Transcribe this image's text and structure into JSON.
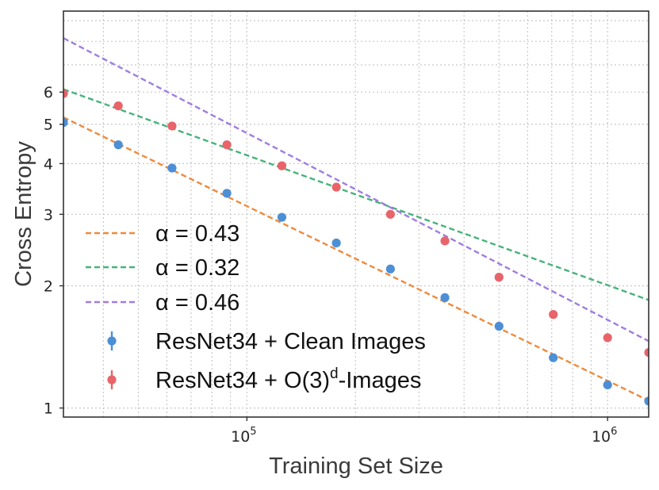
{
  "chart_data": {
    "type": "scatter",
    "xlabel": "Training Set Size",
    "ylabel": "Cross Entropy",
    "xscale": "log",
    "yscale": "log",
    "xlim": [
      31000,
      1300000
    ],
    "ylim": [
      0.95,
      9.5
    ],
    "grid": true,
    "legend_position": "lower-left",
    "x_ticks": [
      {
        "value": 100000,
        "base": "10",
        "exp": "5"
      },
      {
        "value": 1000000,
        "base": "10",
        "exp": "6"
      }
    ],
    "y_ticks": [
      {
        "value": 1,
        "label": "1"
      },
      {
        "value": 2,
        "label": "2"
      },
      {
        "value": 3,
        "label": "3"
      },
      {
        "value": 4,
        "label": "4"
      },
      {
        "value": 5,
        "label": "5"
      },
      {
        "value": 6,
        "label": "6"
      }
    ],
    "series": [
      {
        "name": "ResNet34 + Clean Images",
        "name_main": "ResNet34 + Clean Images",
        "color": "#4c8fd6",
        "x": [
          31000,
          44000,
          62000,
          88000,
          125000,
          177000,
          250000,
          354000,
          500000,
          707000,
          1000000,
          1300000
        ],
        "y": [
          5.05,
          4.45,
          3.9,
          3.38,
          2.95,
          2.55,
          2.2,
          1.87,
          1.59,
          1.33,
          1.14,
          1.04
        ]
      },
      {
        "name": "ResNet34 + O(3)d-Images",
        "name_main": "ResNet34 + O(3)",
        "name_sup": "d",
        "name_tail": "-Images",
        "color": "#e8646a",
        "x": [
          31000,
          44000,
          62000,
          88000,
          125000,
          177000,
          250000,
          354000,
          500000,
          707000,
          1000000,
          1300000
        ],
        "y": [
          5.95,
          5.55,
          4.95,
          4.45,
          3.95,
          3.5,
          3.0,
          2.58,
          2.1,
          1.7,
          1.49,
          1.37
        ]
      }
    ],
    "fits": [
      {
        "label": "α = 0.43",
        "alpha": 0.43,
        "color": "#ef8a3c",
        "anchor_x": 31000,
        "anchor_y": 5.2
      },
      {
        "label": "α = 0.32",
        "alpha": 0.32,
        "color": "#46b37a",
        "anchor_x": 31000,
        "anchor_y": 6.1
      },
      {
        "label": "α = 0.46",
        "alpha": 0.46,
        "color": "#a07de0",
        "anchor_x": 31000,
        "anchor_y": 8.15
      }
    ]
  }
}
